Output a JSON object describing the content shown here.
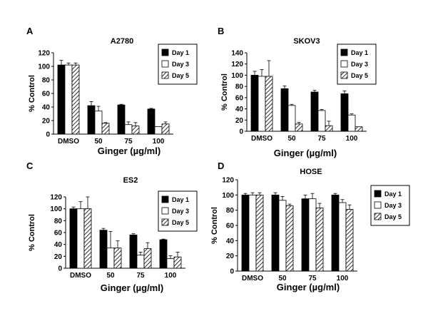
{
  "chart_data": [
    {
      "type": "bar",
      "panel_letter": "A",
      "title": "A2780",
      "ylabel": "% Control",
      "xlabel": "Ginger (µg/ml)",
      "categories": [
        "DMSO",
        "50",
        "75",
        "100"
      ],
      "ylim": [
        0,
        120
      ],
      "yticks": [
        0,
        20,
        40,
        60,
        80,
        100,
        120
      ],
      "series": [
        {
          "name": "Day 1",
          "values": [
            102,
            42,
            43,
            37
          ],
          "errors": [
            7,
            6,
            1,
            1
          ]
        },
        {
          "name": "Day 3",
          "values": [
            102,
            34,
            14,
            11
          ],
          "errors": [
            3,
            7,
            4,
            0
          ]
        },
        {
          "name": "Day 5",
          "values": [
            102,
            16,
            12,
            15
          ],
          "errors": [
            3,
            1,
            5,
            3
          ]
        }
      ],
      "legend": "top-right"
    },
    {
      "type": "bar",
      "panel_letter": "B",
      "title": "SKOV3",
      "ylabel": "% Control",
      "xlabel": "Ginger (µg/ml)",
      "categories": [
        "DMSO",
        "50",
        "75",
        "100"
      ],
      "ylim": [
        0,
        140
      ],
      "yticks": [
        0,
        20,
        40,
        60,
        80,
        100,
        120,
        140
      ],
      "series": [
        {
          "name": "Day 1",
          "values": [
            100,
            76,
            70,
            67
          ],
          "errors": [
            7,
            5,
            3,
            5
          ]
        },
        {
          "name": "Day 3",
          "values": [
            98,
            46,
            37,
            29
          ],
          "errors": [
            12,
            2,
            2,
            2
          ]
        },
        {
          "name": "Day 5",
          "values": [
            98,
            13,
            10,
            8
          ],
          "errors": [
            28,
            3,
            8,
            0
          ]
        }
      ],
      "legend": "top-right"
    },
    {
      "type": "bar",
      "panel_letter": "C",
      "title": "ES2",
      "ylabel": "% Control",
      "xlabel": "Ginger (µg/ml)",
      "categories": [
        "DMSO",
        "50",
        "75",
        "100"
      ],
      "ylim": [
        0,
        120
      ],
      "yticks": [
        0,
        20,
        40,
        60,
        80,
        100,
        120
      ],
      "series": [
        {
          "name": "Day 1",
          "values": [
            100,
            64,
            56,
            48
          ],
          "errors": [
            3,
            3,
            2,
            1
          ]
        },
        {
          "name": "Day 3",
          "values": [
            100,
            34,
            22,
            16
          ],
          "errors": [
            12,
            28,
            5,
            5
          ]
        },
        {
          "name": "Day 5",
          "values": [
            100,
            34,
            33,
            19
          ],
          "errors": [
            20,
            12,
            10,
            8
          ]
        }
      ],
      "legend": "top-right"
    },
    {
      "type": "bar",
      "panel_letter": "D",
      "title": "HOSE",
      "ylabel": "% Control",
      "xlabel": "Ginger (µg/ml)",
      "categories": [
        "DMSO",
        "50",
        "75",
        "100"
      ],
      "ylim": [
        0,
        120
      ],
      "yticks": [
        0,
        20,
        40,
        60,
        80,
        100,
        120
      ],
      "series": [
        {
          "name": "Day 1",
          "values": [
            100,
            100,
            95,
            100
          ],
          "errors": [
            2,
            3,
            5,
            2
          ]
        },
        {
          "name": "Day 3",
          "values": [
            100,
            93,
            95,
            90
          ],
          "errors": [
            3,
            5,
            7,
            4
          ]
        },
        {
          "name": "Day 5",
          "values": [
            100,
            86,
            83,
            81
          ],
          "errors": [
            3,
            2,
            6,
            6
          ]
        }
      ],
      "legend": "outside-right"
    }
  ]
}
